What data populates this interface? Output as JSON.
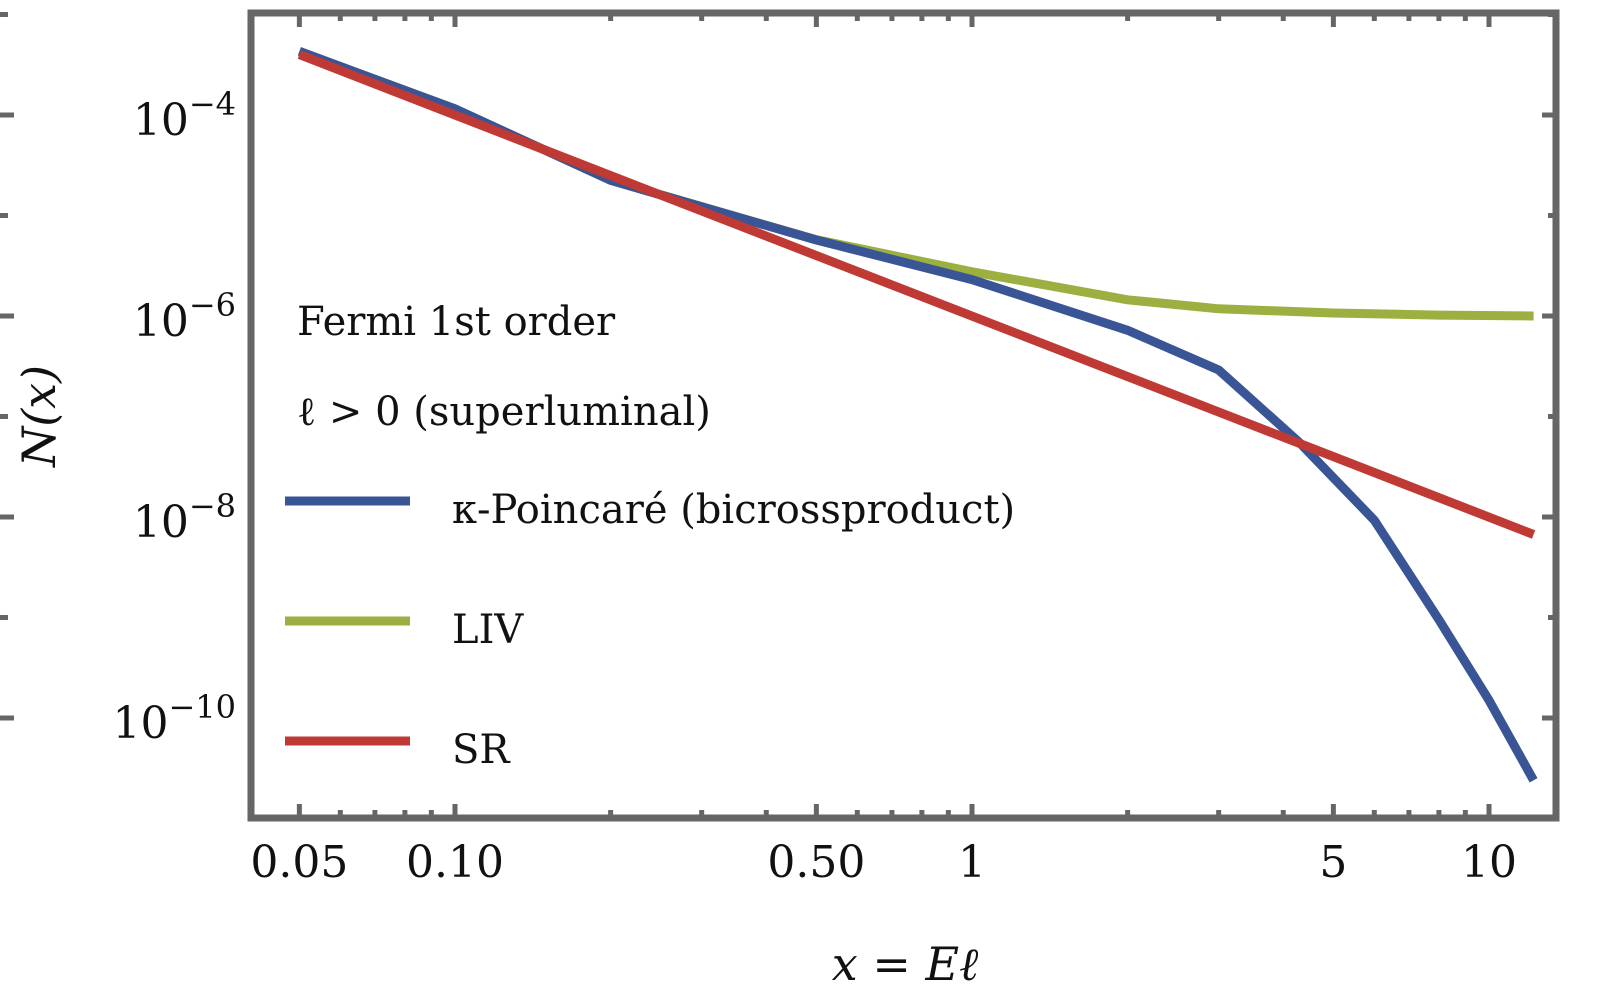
{
  "chart_data": {
    "type": "line",
    "xscale": "log",
    "yscale": "log",
    "xlabel": "x = Eℓ",
    "ylabel": "N(x)",
    "xlim": [
      0.045,
      13.5
    ],
    "ylim": [
      1e-11,
      0.00106
    ],
    "xticks": [
      {
        "v": 0.05,
        "label": "0.05"
      },
      {
        "v": 0.1,
        "label": "0.10"
      },
      {
        "v": 0.5,
        "label": "0.50"
      },
      {
        "v": 1,
        "label": "1"
      },
      {
        "v": 5,
        "label": "5"
      },
      {
        "v": 10,
        "label": "10"
      }
    ],
    "yticks": [
      {
        "v": -4,
        "base": "10",
        "exp": "−4"
      },
      {
        "v": -6,
        "base": "10",
        "exp": "−6"
      },
      {
        "v": -8,
        "base": "10",
        "exp": "−8"
      },
      {
        "v": -10,
        "base": "10",
        "exp": "−10"
      }
    ],
    "grid": false,
    "legend_placement": "center-left",
    "legend_title": [
      "Fermi 1st order",
      "ℓ > 0 (superluminal)"
    ],
    "series": [
      {
        "name": "κ-Poincaré (bicrossproduct)",
        "color": "#3a5595",
        "x": [
          0.05,
          0.1,
          0.2,
          0.5,
          1,
          2,
          3,
          4.3,
          6,
          8,
          10,
          12.2
        ],
        "y": [
          0.00043,
          0.000115,
          2.24e-05,
          5.7e-06,
          2.3e-06,
          7.2e-07,
          2.9e-07,
          5.5e-08,
          9.3e-09,
          9.5e-10,
          1.5e-10,
          2.4e-11
        ]
      },
      {
        "name": "LIV",
        "color": "#9bb040",
        "x": [
          0.05,
          0.1,
          0.2,
          0.5,
          1,
          2,
          3,
          5,
          8,
          12.2
        ],
        "y": [
          0.00043,
          0.000115,
          2.24e-05,
          5.75e-06,
          2.75e-06,
          1.45e-06,
          1.18e-06,
          1.07e-06,
          1.02e-06,
          1e-06
        ]
      },
      {
        "name": "SR",
        "color": "#c03a35",
        "x": [
          0.05,
          12.2
        ],
        "y": [
          0.0004,
          6.7e-09
        ]
      }
    ]
  }
}
